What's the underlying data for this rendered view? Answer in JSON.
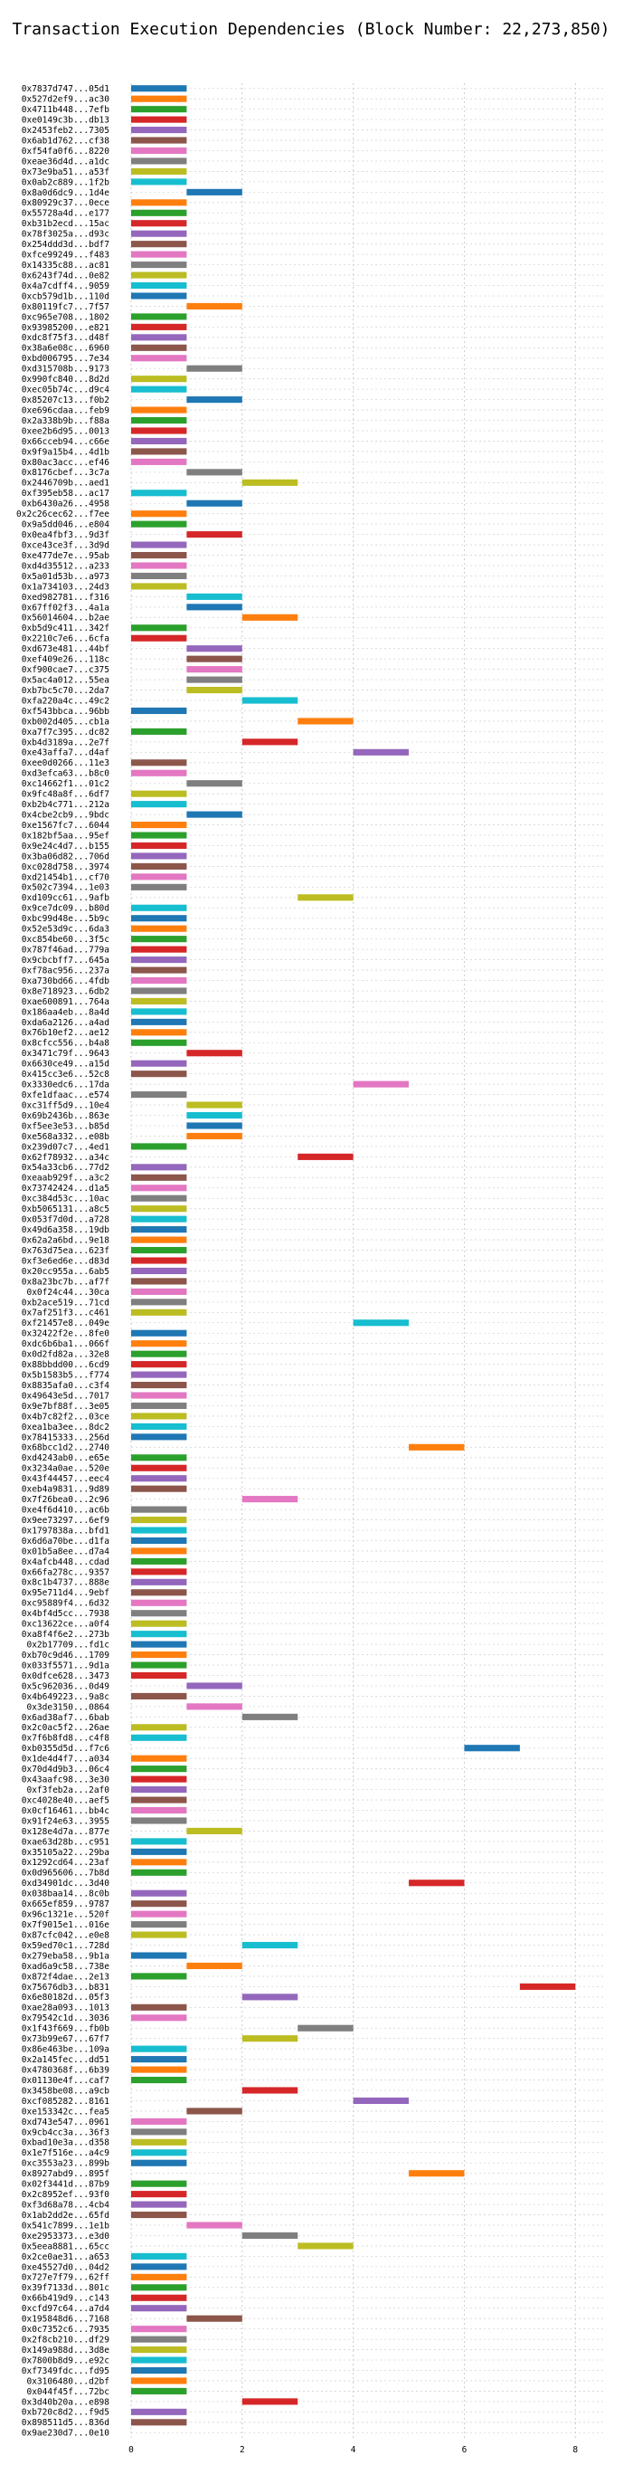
{
  "chart_data": {
    "type": "bar",
    "orientation": "horizontal-gantt",
    "title": "Transaction Execution Dependencies (Block Number: 22,273,850)",
    "xlabel": "",
    "ylabel": "",
    "xlim": [
      0,
      8.5
    ],
    "x_ticks": [
      0,
      2,
      4,
      6,
      8
    ],
    "grid": true,
    "legend": "none",
    "colors": [
      "#1f77b4",
      "#ff7f0e",
      "#2ca02c",
      "#d62728",
      "#9467bd",
      "#8c564b",
      "#e377c2",
      "#7f7f7f",
      "#bcbd22",
      "#17becf"
    ],
    "categories": [
      "0x7837d747...05d1",
      "0x527d2ef9...ac30",
      "0x4711b448...7efb",
      "0xe0149c3b...db13",
      "0x2453feb2...7305",
      "0x6ab1d762...cf38",
      "0xf54fa0f6...8220",
      "0xeae36d4d...a1dc",
      "0x73e9ba51...a53f",
      "0x0ab2c889...1f2b",
      "0x8a0d6dc9...1d4e",
      "0x80929c37...0ece",
      "0x55728a4d...e177",
      "0xb31b2ecd...15ac",
      "0x78f3025a...d93c",
      "0x254ddd3d...bdf7",
      "0xfce99249...f483",
      "0x14335c88...ac81",
      "0x6243f74d...0e82",
      "0x4a7cdff4...9059",
      "0xcb579d1b...110d",
      "0x80119fc7...7f57",
      "0xc965e708...1802",
      "0x93985200...e821",
      "0xdc8f75f3...d48f",
      "0x38a6e08c...6960",
      "0xbd006795...7e34",
      "0xd315708b...9173",
      "0x990fc840...8d2d",
      "0xec05b74c...d9c4",
      "0x85207c13...f0b2",
      "0xe696cdaa...feb9",
      "0x2a338b9b...f88a",
      "0xee2b6d95...0013",
      "0x66cceb94...c66e",
      "0x9f9a15b4...4d1b",
      "0x80ac3acc...ef46",
      "0x8176cbef...3c7a",
      "0x2446709b...aed1",
      "0xf395eb58...ac17",
      "0xb6430a26...4958",
      "0x2c26cec62...f7ee",
      "0x9a5dd046...e804",
      "0x0ea4fbf3...9d3f",
      "0xce43ce3f...3d9d",
      "0xe477de7e...95ab",
      "0xd4d35512...a233",
      "0x5a01d53b...a973",
      "0x1a734103...24d3",
      "0xed982781...f316",
      "0x67ff02f3...4a1a",
      "0x56014604...b2ae",
      "0xb5d9c411...342f",
      "0x2210c7e6...6cfa",
      "0xd673e481...44bf",
      "0xef409e26...118c",
      "0xf900cae7...c375",
      "0x5ac4a012...55ea",
      "0xb7bc5c70...2da7",
      "0xfa220a4c...49c2",
      "0xf543bbca...96bb",
      "0xb002d405...cb1a",
      "0xa7f7c395...dc82",
      "0xb4d3189a...2e7f",
      "0xe43affa7...d4af",
      "0xee0d0266...11e3",
      "0xd3efca63...b8c0",
      "0xc14662f1...01c2",
      "0x9fc48a8f...6df7",
      "0xb2b4c771...212a",
      "0x4cbe2cb9...9bdc",
      "0xe1567fc7...6044",
      "0x182bf5aa...95ef",
      "0x9e24c4d7...b155",
      "0x3ba06d82...706d",
      "0xc028d758...3974",
      "0xd21454b1...cf70",
      "0x502c7394...1e03",
      "0xd109cc61...9afb",
      "0x9ce7dc09...b80d",
      "0xbc99d48e...5b9c",
      "0x52e53d9c...6da3",
      "0xc854be60...3f5c",
      "0x787f46ad...779a",
      "0x9cbcbff7...645a",
      "0xf78ac956...237a",
      "0xa730bd66...4fdb",
      "0x8e718923...6db2",
      "0xae600891...764a",
      "0x186aa4eb...8a4d",
      "0xda6a2126...a4ad",
      "0x76b10ef2...ae12",
      "0x8cfcc556...b4a8",
      "0x3471c79f...9643",
      "0x6630ce49...a15d",
      "0x415cc3e6...52c8",
      "0x3330edc6...17da",
      "0xfe1dfaac...e574",
      "0xc31ff5d9...10e4",
      "0x69b2436b...863e",
      "0xf5ee3e53...b85d",
      "0xe568a332...e08b",
      "0x239d07c7...4ed1",
      "0x62f78932...a34c",
      "0x54a33cb6...77d2",
      "0xeaab929f...a3c2",
      "0x73742424...d1a5",
      "0xc384d53c...10ac",
      "0xb5065131...a8c5",
      "0x053f7d0d...a728",
      "0x49d6a358...19db",
      "0x62a2a6bd...9e18",
      "0x763d75ea...623f",
      "0xf3e6ed6e...d83d",
      "0x20cc955a...6ab5",
      "0x8a23bc7b...af7f",
      "0x0f24c44...30ca",
      "0xb2ace519...71cd",
      "0x7af251f3...c461",
      "0xf21457e8...049e",
      "0x32422f2e...8fe0",
      "0xdc6b6ba1...066f",
      "0x0d2fd82a...32e8",
      "0x88bbdd00...6cd9",
      "0x5b1583b5...f774",
      "0x8835afa0...c3f4",
      "0x49643e5d...7017",
      "0x9e7bf88f...3e05",
      "0x4b7c82f2...03ce",
      "0xea1ba3ee...8dc2",
      "0x78415333...256d",
      "0x68bcc1d2...2740",
      "0xd4243ab0...e65e",
      "0x3234a0ae...520e",
      "0x43f44457...eec4",
      "0xeb4a9831...9d89",
      "0x7f26bea0...2c96",
      "0xe4f6d410...ac6b",
      "0x9ee73297...6ef9",
      "0x1797838a...bfd1",
      "0x6d6a70be...d1fa",
      "0x01b5a8ee...d7a4",
      "0x4afcb448...cdad",
      "0x66fa278c...9357",
      "0x8c1b4737...888e",
      "0x95e711d4...9ebf",
      "0xc95889f4...6d32",
      "0x4bf4d5cc...7938",
      "0xc13622ce...a0f4",
      "0xa8f4f6e2...273b",
      "0x2b17709...fd1c",
      "0xb70c9d46...1709",
      "0x033f5571...9d1a",
      "0x0dfce628...3473",
      "0x5c962036...0d49",
      "0x4b649223...9a8c",
      "0x3de3150...0864",
      "0x6ad38af7...6bab",
      "0x2c0ac5f2...26ae",
      "0x7f6b8fd8...c4f8",
      "0xb0355d5d...f7c6",
      "0x1de4d4f7...a034",
      "0x70d4d9b3...06c4",
      "0x43aafc98...3e30",
      "0xf3feb2a...2af0",
      "0xc4028e40...aef5",
      "0x0cf16461...bb4c",
      "0x91f24e63...3955",
      "0x128e4d7a...877e",
      "0xae63d28b...c951",
      "0x35105a22...29ba",
      "0x1292cd64...23af",
      "0x0d965606...7b8d",
      "0xd34901dc...3d40",
      "0x038baa14...8c0b",
      "0x665ef859...9787",
      "0x96c1321e...520f",
      "0x7f9015e1...016e",
      "0x87cfc042...e0e8",
      "0x59ed70c1...728d",
      "0x279eba58...9b1a",
      "0xad6a9c58...738e",
      "0x872f4dae...2e13",
      "0x75676db3...b831",
      "0x6e80182d...05f3",
      "0xae28a093...1013",
      "0x79542c1d...3036",
      "0x1f43f669...fb0b",
      "0x73b99e67...67f7",
      "0x86e463be...109a",
      "0x2a145fec...dd51",
      "0x4780368f...6b39",
      "0x01130e4f...caf7",
      "0x3458be08...a9cb",
      "0xcf085282...8161",
      "0xe153342c...fea5",
      "0xd743e547...0961",
      "0x9cb4cc3a...36f3",
      "0xbad10e3a...d358",
      "0x1e7f516e...a4c9",
      "0xc3553a23...899b",
      "0x8927abd9...895f",
      "0x02f3441d...87b9",
      "0x2c8952ef...93f0",
      "0xf3d68a78...4cb4",
      "0x1ab2dd2e...65fd",
      "0x541c7899...1e1b",
      "0xe2953373...e3d0",
      "0x5eea8881...65cc",
      "0x2ce0ae31...a653",
      "0xe45527d0...04d2",
      "0x727e7f79...62ff",
      "0x39f7133d...801c",
      "0x66b419d9...c143",
      "0xcfd97c64...a7d4",
      "0x195848d6...7168",
      "0x0c7352c6...7935",
      "0x2f8cb210...df29",
      "0x149a988d...3d8e",
      "0x7800b8d9...e92c",
      "0xf7349fdc...fd95",
      "0x3106480...d2bf",
      "0x044f45f...72bc",
      "0x3d40b20a...e898",
      "0xb720c8d2...f9d5",
      "0x898511d5...836d",
      "0x9ae230d7...0e10"
    ],
    "series": [
      {
        "start": [
          0,
          0,
          0,
          0,
          0,
          0,
          0,
          0,
          0,
          0,
          1,
          0,
          0,
          0,
          0,
          0,
          0,
          0,
          0,
          0,
          0,
          1,
          0,
          0,
          0,
          0,
          0,
          1,
          0,
          0,
          1,
          0,
          0,
          0,
          0,
          0,
          0,
          1,
          2,
          0,
          1,
          0,
          0,
          1,
          0,
          0,
          0,
          0,
          0,
          1,
          1,
          2,
          0,
          0,
          1,
          1,
          1,
          1,
          1,
          2,
          0,
          3,
          0,
          2,
          4,
          0,
          0,
          1,
          0,
          0,
          1,
          0,
          0,
          0,
          0,
          0,
          0,
          0,
          3,
          0,
          0,
          0,
          0,
          0,
          0,
          0,
          0,
          0,
          0,
          0,
          0,
          0,
          0,
          1,
          0,
          0,
          4,
          0,
          1,
          1,
          1,
          1,
          0,
          3,
          0,
          0,
          0,
          0,
          0,
          0,
          0,
          0,
          0,
          0,
          0,
          0,
          0,
          0,
          0,
          4,
          0,
          0,
          0,
          0,
          0,
          0,
          0,
          0,
          0,
          0,
          0,
          5,
          0,
          0,
          0,
          0,
          2,
          0,
          0,
          0,
          0,
          0,
          0,
          0,
          0,
          0,
          0,
          0,
          0,
          0,
          0,
          0,
          0,
          0,
          1,
          0,
          1,
          2,
          0,
          0,
          6,
          0,
          0,
          0,
          0,
          0,
          0,
          0,
          1,
          0,
          0,
          0,
          0,
          5,
          0,
          0,
          0,
          0,
          0,
          2,
          0,
          1,
          0,
          7,
          2,
          0,
          0,
          3,
          2,
          0,
          0,
          0,
          0,
          2,
          4,
          1,
          0,
          0,
          0,
          0,
          0,
          5,
          0,
          0,
          0,
          0,
          1,
          2,
          3,
          0,
          0,
          0,
          0,
          0,
          0,
          1,
          0,
          0,
          0,
          0,
          0,
          0,
          0,
          2,
          0,
          0
        ],
        "end": [
          1,
          1,
          1,
          1,
          1,
          1,
          1,
          1,
          1,
          1,
          2,
          1,
          1,
          1,
          1,
          1,
          1,
          1,
          1,
          1,
          1,
          2,
          1,
          1,
          1,
          1,
          1,
          2,
          1,
          1,
          2,
          1,
          1,
          1,
          1,
          1,
          1,
          2,
          3,
          1,
          2,
          1,
          1,
          2,
          1,
          1,
          1,
          1,
          1,
          2,
          2,
          3,
          1,
          1,
          2,
          2,
          2,
          2,
          2,
          3,
          1,
          4,
          1,
          3,
          5,
          1,
          1,
          2,
          1,
          1,
          2,
          1,
          1,
          1,
          1,
          1,
          1,
          1,
          4,
          1,
          1,
          1,
          1,
          1,
          1,
          1,
          1,
          1,
          1,
          1,
          1,
          1,
          1,
          2,
          1,
          1,
          5,
          1,
          2,
          2,
          2,
          2,
          1,
          4,
          1,
          1,
          1,
          1,
          1,
          1,
          1,
          1,
          1,
          1,
          1,
          1,
          1,
          1,
          1,
          5,
          1,
          1,
          1,
          1,
          1,
          1,
          1,
          1,
          1,
          1,
          1,
          6,
          1,
          1,
          1,
          1,
          3,
          1,
          1,
          1,
          1,
          1,
          1,
          1,
          1,
          1,
          1,
          1,
          1,
          1,
          1,
          1,
          1,
          1,
          2,
          1,
          2,
          3,
          1,
          1,
          7,
          1,
          1,
          1,
          1,
          1,
          1,
          1,
          2,
          1,
          1,
          1,
          1,
          6,
          1,
          1,
          1,
          1,
          1,
          3,
          1,
          2,
          1,
          8,
          3,
          1,
          1,
          4,
          3,
          1,
          1,
          1,
          1,
          3,
          5,
          2,
          1,
          1,
          1,
          1,
          1,
          6,
          1,
          1,
          1,
          1,
          2,
          3,
          4,
          1,
          1,
          1,
          1,
          1,
          1,
          2,
          1,
          1,
          1,
          1,
          1,
          1,
          1,
          3,
          1,
          1
        ]
      }
    ]
  }
}
